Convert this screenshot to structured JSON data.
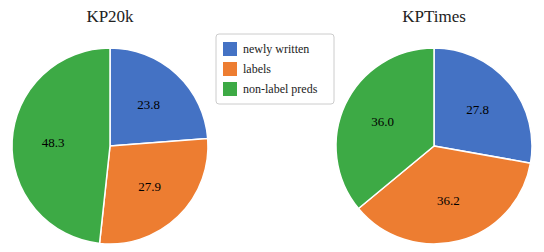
{
  "chart_data": [
    {
      "type": "pie",
      "title": "KP20k",
      "categories": [
        "newly written",
        "labels",
        "non-label preds"
      ],
      "values": [
        23.8,
        27.9,
        48.3
      ],
      "colors": [
        "#4472C4",
        "#ED7D31",
        "#3DAA45"
      ],
      "data_labels": true,
      "legend": "right"
    },
    {
      "type": "pie",
      "title": "KPTimes",
      "categories": [
        "newly written",
        "labels",
        "non-label preds"
      ],
      "values": [
        27.8,
        36.2,
        36.0
      ],
      "value_labels": [
        "27.8",
        "36.2",
        "36.0"
      ],
      "colors": [
        "#4472C4",
        "#ED7D31",
        "#3DAA45"
      ],
      "data_labels": true
    }
  ]
}
